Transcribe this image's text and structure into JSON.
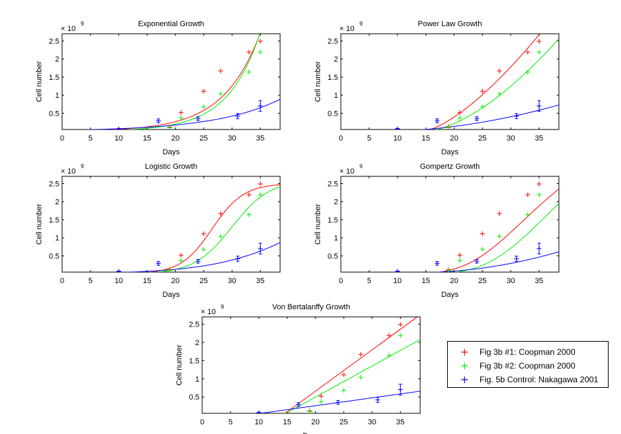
{
  "chart_data": [
    {
      "type": "scatter",
      "title": "Exponential Growth",
      "xlabel": "Days",
      "ylabel": "Cell number",
      "y_multiplier": "× 10",
      "y_exponent": "9",
      "xlim": [
        0,
        38.5
      ],
      "ylim": [
        0.05,
        2.7
      ],
      "xticks": [
        "0",
        "5",
        "10",
        "15",
        "20",
        "25",
        "30",
        "35"
      ],
      "yticks": [
        "0.5",
        "1",
        "1.5",
        "2",
        "2.5"
      ],
      "curves": {
        "red": {
          "model": "exponential",
          "a": 0.012,
          "b": 0.155
        },
        "green": {
          "model": "exponential",
          "a": 0.006,
          "b": 0.175
        },
        "blue": {
          "model": "exponential",
          "a": 0.03,
          "b": 0.088
        }
      }
    },
    {
      "type": "scatter",
      "title": "Power Law Growth",
      "xlabel": "Days",
      "ylabel": "Cell number",
      "y_multiplier": "× 10",
      "y_exponent": "9",
      "xlim": [
        0,
        38.5
      ],
      "ylim": [
        0.05,
        2.7
      ],
      "xticks": [
        "0",
        "5",
        "10",
        "15",
        "20",
        "25",
        "30",
        "35"
      ],
      "yticks": [
        "0.5",
        "1",
        "1.5",
        "2",
        "2.5"
      ],
      "curves": {
        "red": {
          "model": "power",
          "x0": 14.5,
          "k": 0.0335,
          "p": 1.45
        },
        "green": {
          "model": "power",
          "x0": 15.0,
          "k": 0.0164,
          "p": 1.6
        },
        "blue": {
          "model": "power",
          "x0": 7.5,
          "k": 0.00127,
          "p": 1.85
        }
      }
    },
    {
      "type": "scatter",
      "title": "Logistic Growth",
      "xlabel": "Days",
      "ylabel": "Cell number",
      "y_multiplier": "× 10",
      "y_exponent": "9",
      "xlim": [
        0,
        38.5
      ],
      "ylim": [
        0.05,
        2.7
      ],
      "xticks": [
        "0",
        "5",
        "10",
        "15",
        "20",
        "25",
        "30",
        "35"
      ],
      "yticks": [
        "0.5",
        "1",
        "1.5",
        "2",
        "2.5"
      ],
      "curves": {
        "red": {
          "model": "logistic",
          "K": 2.5,
          "r": 0.36,
          "x0": 26.5
        },
        "green": {
          "model": "logistic",
          "K": 2.6,
          "r": 0.3,
          "x0": 30.0
        },
        "blue": {
          "model": "logistic",
          "K": 3.0,
          "r": 0.12,
          "x0": 46.0
        }
      }
    },
    {
      "type": "scatter",
      "title": "Gompertz Growth",
      "xlabel": "Days",
      "ylabel": "Cell number",
      "y_multiplier": "× 10",
      "y_exponent": "9",
      "xlim": [
        0,
        38.5
      ],
      "ylim": [
        0.05,
        2.7
      ],
      "xticks": [
        "0",
        "5",
        "10",
        "15",
        "20",
        "25",
        "30",
        "35"
      ],
      "yticks": [
        "0.5",
        "1",
        "1.5",
        "2",
        "2.5"
      ],
      "curves": {
        "red": {
          "model": "gompertz",
          "K": 4.0,
          "b": 25.0,
          "c": 0.1
        },
        "green": {
          "model": "gompertz",
          "K": 4.5,
          "b": 30.0,
          "c": 0.093
        },
        "blue": {
          "model": "gompertz",
          "K": 3.0,
          "b": 9.0,
          "c": 0.045
        }
      }
    },
    {
      "type": "scatter",
      "title": "Von Bertalanffy Growth",
      "xlabel": "Days",
      "ylabel": "Cell number",
      "y_multiplier": "× 10",
      "y_exponent": "9",
      "xlim": [
        0,
        38.5
      ],
      "ylim": [
        0.05,
        2.7
      ],
      "xticks": [
        "0",
        "5",
        "10",
        "15",
        "20",
        "25",
        "30",
        "35"
      ],
      "yticks": [
        "0.5",
        "1",
        "1.5",
        "2",
        "2.5"
      ],
      "curves": {
        "red": {
          "model": "linear",
          "x0": 14.2,
          "slope": 0.1135
        },
        "green": {
          "model": "linear",
          "x0": 14.2,
          "slope": 0.0855
        },
        "blue": {
          "model": "linear",
          "x0": 8.0,
          "slope": 0.0216
        }
      }
    }
  ],
  "series": [
    {
      "name": "Fig 3b #1: Coopman 2000",
      "color": "#ff0000",
      "x": [
        19,
        21,
        25,
        28,
        33,
        35
      ],
      "y": [
        0.12,
        0.52,
        1.11,
        1.67,
        2.19,
        2.49
      ]
    },
    {
      "name": "Fig 3b #2: Coopman 2000",
      "color": "#00ee00",
      "x": [
        19,
        21,
        25,
        28,
        33,
        35
      ],
      "y": [
        0.1,
        0.37,
        0.68,
        1.04,
        1.64,
        2.19
      ]
    },
    {
      "name": "Fig. 5b Control: Nakagawa 2001",
      "color": "#0000ff",
      "x": [
        10,
        17,
        24,
        31,
        35
      ],
      "y": [
        0.07,
        0.29,
        0.35,
        0.42,
        0.7
      ],
      "err": [
        0.01,
        0.05,
        0.05,
        0.07,
        0.15
      ]
    }
  ],
  "legend": {
    "marker": "+",
    "entries": [
      "Fig 3b #1: Coopman 2000",
      "Fig 3b #2: Coopman 2000",
      "Fig. 5b Control: Nakagawa 2001"
    ]
  }
}
